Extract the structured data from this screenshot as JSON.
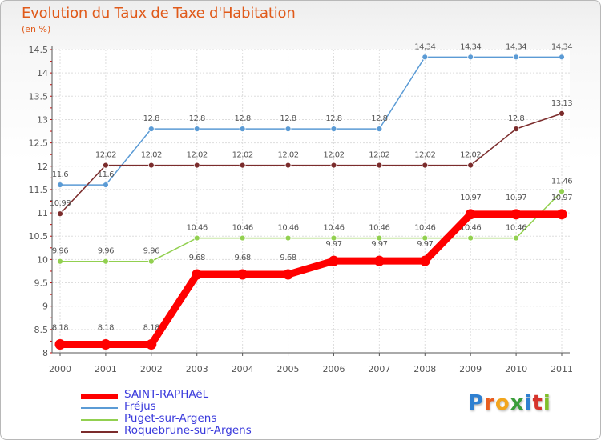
{
  "title": "Evolution du Taux de Taxe d'Habitation",
  "unit": "(en %)",
  "brand": {
    "letters": [
      {
        "ch": "P",
        "color": "#2f80d1"
      },
      {
        "ch": "r",
        "color": "#e85d1e"
      },
      {
        "ch": "o",
        "color": "#f2a51c"
      },
      {
        "ch": "x",
        "color": "#3b9e3b"
      },
      {
        "ch": "i",
        "color": "#2f80d1"
      },
      {
        "ch": "t",
        "color": "#d6332b"
      },
      {
        "ch": "i",
        "color": "#7fbf2a"
      }
    ]
  },
  "chart_data": {
    "type": "line",
    "title": "Evolution du Taux de Taxe d'Habitation",
    "ylabel": "(en %)",
    "xlabel": "",
    "x": [
      "2000",
      "2001",
      "2002",
      "2003",
      "2004",
      "2005",
      "2006",
      "2007",
      "2008",
      "2009",
      "2010",
      "2011"
    ],
    "ylim": [
      8,
      14.5
    ],
    "yticks": [
      "8",
      "8.5",
      "9",
      "9.5",
      "10",
      "10.5",
      "11",
      "11.5",
      "12",
      "12.5",
      "13",
      "13.5",
      "14",
      "14.5"
    ],
    "grid": true,
    "legend_position": "bottom-left",
    "series": [
      {
        "name": "SAINT-RAPHAëL",
        "color": "#ff0000",
        "emphasis": "thick",
        "values": [
          8.18,
          8.18,
          8.18,
          9.68,
          9.68,
          9.68,
          9.97,
          9.97,
          9.97,
          10.97,
          10.97,
          10.97
        ],
        "labels": [
          "8.18",
          "8.18",
          "8.18",
          "9.68",
          "9.68",
          "9.68",
          "9.97",
          "9.97",
          "9.97",
          "10.97",
          "10.97",
          "10.97"
        ]
      },
      {
        "name": "Fréjus",
        "color": "#5b9bd5",
        "values": [
          11.6,
          11.6,
          12.8,
          12.8,
          12.8,
          12.8,
          12.8,
          12.8,
          14.34,
          14.34,
          14.34,
          14.34
        ],
        "labels": [
          "11.6",
          "11.6",
          "12.8",
          "12.8",
          "12.8",
          "12.8",
          "12.8",
          "12.8",
          "14.34",
          "14.34",
          "14.34",
          "14.34"
        ]
      },
      {
        "name": "Puget-sur-Argens",
        "color": "#92d050",
        "values": [
          9.96,
          9.96,
          9.96,
          10.46,
          10.46,
          10.46,
          10.46,
          10.46,
          10.46,
          10.46,
          10.46,
          11.46
        ],
        "labels": [
          "9.96",
          "9.96",
          "9.96",
          "10.46",
          "10.46",
          "10.46",
          "10.46",
          "10.46",
          "10.46",
          "10.46",
          "10.46",
          "11.46"
        ]
      },
      {
        "name": "Roquebrune-sur-Argens",
        "color": "#7b2c2c",
        "values": [
          10.98,
          12.02,
          12.02,
          12.02,
          12.02,
          12.02,
          12.02,
          12.02,
          12.02,
          12.02,
          12.8,
          13.13
        ],
        "labels": [
          "10.98",
          "12.02",
          "12.02",
          "12.02",
          "12.02",
          "12.02",
          "12.02",
          "12.02",
          "12.02",
          "12.02",
          "12.8",
          "13.13"
        ]
      }
    ]
  }
}
